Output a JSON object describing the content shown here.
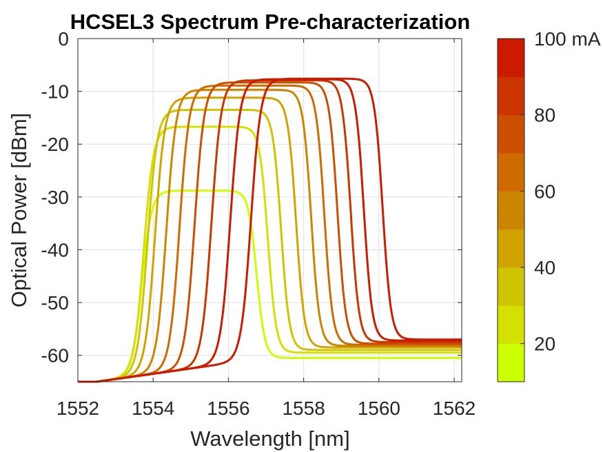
{
  "chart_data": {
    "type": "line",
    "title": "HCSEL3 Spectrum Pre-characterization",
    "xlabel": "Wavelength [nm]",
    "ylabel": "Optical Power [dBm]",
    "xlim": [
      1552,
      1562.2
    ],
    "ylim": [
      -65,
      0
    ],
    "xticks": [
      1552,
      1554,
      1556,
      1558,
      1560,
      1562
    ],
    "yticks": [
      0,
      -10,
      -20,
      -30,
      -40,
      -50,
      -60
    ],
    "grid": true,
    "colorbar": {
      "range": [
        10,
        100
      ],
      "ticks": [
        20,
        40,
        60,
        80,
        100
      ],
      "tick_labels": [
        "20",
        "40",
        "60",
        "80",
        "100 mA"
      ],
      "levels": 9,
      "colors": [
        "#ccff00",
        "#d3e000",
        "#cfc400",
        "#cfa400",
        "#cc8500",
        "#cd6a00",
        "#cc4f00",
        "#cc3500",
        "#cc1a00"
      ]
    },
    "series_profile": {
      "current_mA": [
        10,
        20,
        30,
        40,
        50,
        60,
        70,
        80,
        90,
        100
      ],
      "peak_dBm": [
        -28.8,
        -16.7,
        -13.5,
        -11.2,
        -9.7,
        -8.9,
        -8.3,
        -7.9,
        -7.7,
        -7.6
      ],
      "rise_center_nm": [
        1553.7,
        1553.75,
        1553.85,
        1554.05,
        1554.35,
        1554.7,
        1555.1,
        1555.55,
        1556.05,
        1556.6
      ],
      "fall_center_nm": [
        1556.75,
        1557.05,
        1557.4,
        1557.8,
        1558.2,
        1558.55,
        1558.9,
        1559.25,
        1559.6,
        1560.1
      ],
      "floor_dBm": [
        -60.5,
        -59.5,
        -59.0,
        -58.5,
        -58.2,
        -58.0,
        -57.8,
        -57.5,
        -57.2,
        -57.0
      ]
    }
  }
}
